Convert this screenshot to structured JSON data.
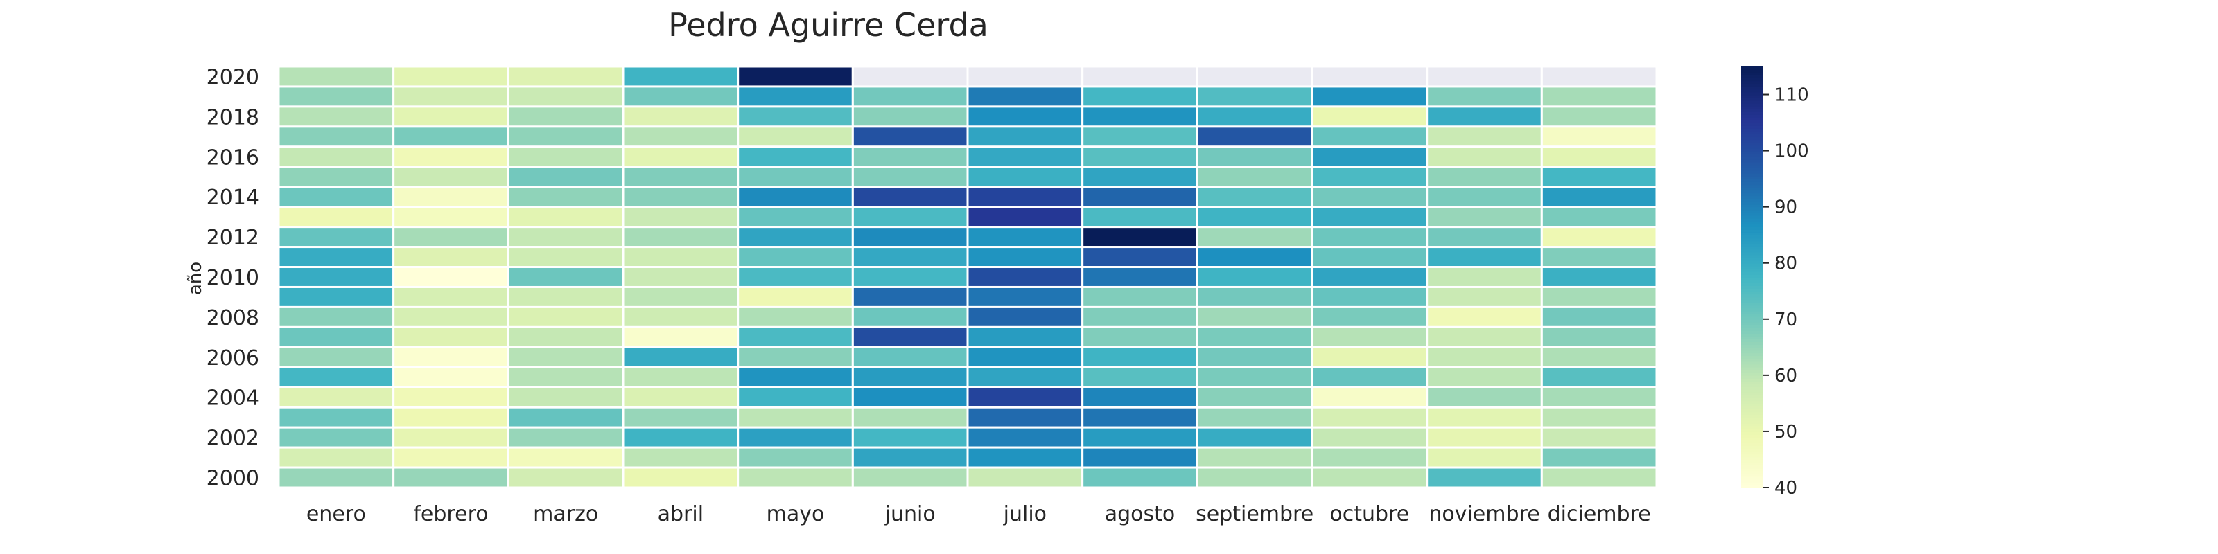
{
  "chart_data": {
    "type": "heatmap",
    "title": "Pedro Aguirre Cerda",
    "xlabel": "",
    "ylabel": "año",
    "categories": [
      "enero",
      "febrero",
      "marzo",
      "abril",
      "mayo",
      "junio",
      "julio",
      "agosto",
      "septiembre",
      "octubre",
      "noviembre",
      "diciembre"
    ],
    "y": [
      2020,
      2019,
      2018,
      2017,
      2016,
      2015,
      2014,
      2013,
      2012,
      2011,
      2010,
      2009,
      2008,
      2007,
      2006,
      2005,
      2004,
      2003,
      2002,
      2001,
      2000
    ],
    "y_tick_labels": [
      "2020",
      "2018",
      "2016",
      "2014",
      "2012",
      "2010",
      "2008",
      "2006",
      "2004",
      "2002",
      "2000"
    ],
    "values": [
      [
        61,
        52,
        53,
        78,
        114,
        null,
        null,
        null,
        null,
        null,
        null,
        null
      ],
      [
        66,
        56,
        58,
        70,
        84,
        70,
        91,
        77,
        75,
        86,
        68,
        63
      ],
      [
        61,
        52,
        63,
        53,
        75,
        67,
        87,
        86,
        80,
        50,
        80,
        63
      ],
      [
        67,
        69,
        66,
        61,
        57,
        99,
        82,
        74,
        98,
        72,
        58,
        45
      ],
      [
        59,
        48,
        60,
        52,
        77,
        68,
        81,
        74,
        70,
        84,
        57,
        52
      ],
      [
        66,
        58,
        70,
        68,
        70,
        68,
        79,
        82,
        66,
        76,
        66,
        77
      ],
      [
        71,
        45,
        66,
        67,
        88,
        101,
        102,
        95,
        74,
        70,
        69,
        84
      ],
      [
        49,
        46,
        52,
        58,
        72,
        76,
        105,
        76,
        78,
        80,
        65,
        69
      ],
      [
        72,
        63,
        59,
        63,
        82,
        88,
        86,
        115,
        64,
        71,
        70,
        49
      ],
      [
        80,
        53,
        57,
        57,
        72,
        81,
        86,
        98,
        87,
        72,
        79,
        68
      ],
      [
        80,
        40,
        71,
        58,
        76,
        77,
        100,
        92,
        78,
        82,
        59,
        79
      ],
      [
        79,
        55,
        57,
        60,
        49,
        94,
        92,
        68,
        70,
        72,
        58,
        63
      ],
      [
        67,
        55,
        54,
        57,
        62,
        71,
        95,
        68,
        64,
        69,
        48,
        70
      ],
      [
        71,
        53,
        59,
        43,
        76,
        100,
        84,
        68,
        69,
        61,
        58,
        67
      ],
      [
        65,
        42,
        61,
        80,
        67,
        72,
        86,
        78,
        70,
        51,
        59,
        62
      ],
      [
        77,
        42,
        61,
        60,
        86,
        84,
        82,
        74,
        69,
        72,
        60,
        74
      ],
      [
        53,
        48,
        59,
        54,
        78,
        87,
        102,
        89,
        67,
        44,
        64,
        63
      ],
      [
        71,
        49,
        72,
        65,
        60,
        62,
        94,
        92,
        65,
        55,
        52,
        60
      ],
      [
        69,
        51,
        65,
        78,
        83,
        77,
        90,
        84,
        80,
        59,
        51,
        58
      ],
      [
        55,
        48,
        47,
        60,
        67,
        82,
        86,
        89,
        61,
        62,
        52,
        69
      ],
      [
        65,
        65,
        56,
        50,
        60,
        62,
        58,
        71,
        62,
        60,
        75,
        60
      ]
    ],
    "vmin": 40,
    "vmax": 115,
    "colormap": "YlGnBu",
    "missing_color": "#eaeaf2",
    "colorbar_ticks": [
      40,
      50,
      60,
      70,
      80,
      90,
      100,
      110
    ],
    "grid": false,
    "legend": "colorbar-right"
  }
}
